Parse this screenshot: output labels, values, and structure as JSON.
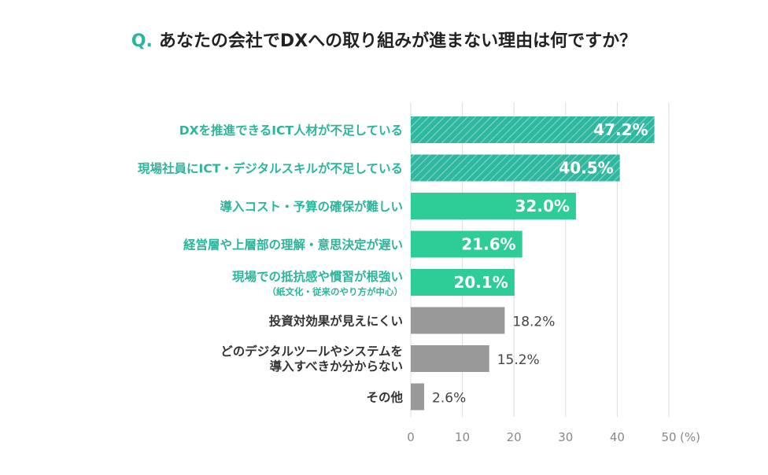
{
  "title": {
    "q_mark": "Q.",
    "text": "あなたの会社でDXへの取り組みが進まない理由は何ですか？"
  },
  "colors": {
    "hatched": "#2fb8a0",
    "solid": "#2ecc96",
    "gray": "#999999",
    "label_green": "#2bb59a",
    "label_gray": "#333333",
    "grid": "#dddddd"
  },
  "chart_data": {
    "type": "bar",
    "orientation": "horizontal",
    "categories": [
      {
        "lines": [
          "DXを推進できるICT人材が不足している"
        ],
        "sub": "",
        "style": "hatched"
      },
      {
        "lines": [
          "現場社員にICT・デジタルスキルが不足している"
        ],
        "sub": "",
        "style": "hatched"
      },
      {
        "lines": [
          "導入コスト・予算の確保が難しい"
        ],
        "sub": "",
        "style": "solid"
      },
      {
        "lines": [
          "経営層や上層部の理解・意思決定が遅い"
        ],
        "sub": "",
        "style": "solid"
      },
      {
        "lines": [
          "現場での抵抗感や慣習が根強い"
        ],
        "sub": "（紙文化・従来のやり方が中心）",
        "style": "solid"
      },
      {
        "lines": [
          "投資対効果が見えにくい"
        ],
        "sub": "",
        "style": "gray"
      },
      {
        "lines": [
          "どのデジタルツールやシステムを",
          "導入すべきか分からない"
        ],
        "sub": "",
        "style": "gray"
      },
      {
        "lines": [
          "その他"
        ],
        "sub": "",
        "style": "gray"
      }
    ],
    "values": [
      47.2,
      40.5,
      32.0,
      21.6,
      20.1,
      18.2,
      15.2,
      2.6
    ],
    "value_labels": [
      "47.2%",
      "40.5%",
      "32.0%",
      "21.6%",
      "20.1%",
      "18.2%",
      "15.2%",
      "2.6%"
    ],
    "xlim": [
      0,
      50
    ],
    "xticks": [
      "0",
      "10",
      "20",
      "30",
      "40",
      "50"
    ],
    "unit_label": "(%)",
    "grid": true
  }
}
